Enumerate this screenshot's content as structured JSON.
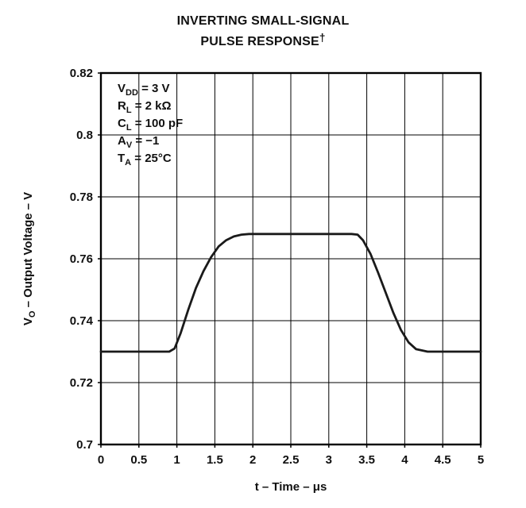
{
  "title": {
    "line1": "INVERTING SMALL-SIGNAL",
    "line2": "PULSE RESPONSE",
    "dagger": "†"
  },
  "chart_data": {
    "type": "line",
    "title": "INVERTING SMALL-SIGNAL PULSE RESPONSE†",
    "title_lines": [
      "INVERTING SMALL-SIGNAL",
      "PULSE RESPONSE"
    ],
    "title_dagger": "†",
    "xlabel": "t – Time – μs",
    "ylabel": {
      "pre": "V",
      "sub": "O",
      "post": " – Output Voltage – V"
    },
    "xlim": [
      0,
      5
    ],
    "ylim": [
      0.7,
      0.82
    ],
    "xticks": [
      0,
      0.5,
      1,
      1.5,
      2,
      2.5,
      3,
      3.5,
      4,
      4.5,
      5
    ],
    "yticks": [
      0.7,
      0.72,
      0.74,
      0.76,
      0.78,
      0.8,
      0.82
    ],
    "grid": true,
    "legend": "none",
    "line_color": "#1a1a1a",
    "annotations": [
      {
        "pre": "V",
        "sub": "DD",
        "post": " = 3 V"
      },
      {
        "pre": "R",
        "sub": "L",
        "post": " = 2 kΩ"
      },
      {
        "pre": "C",
        "sub": "L",
        "post": " = 100  pF"
      },
      {
        "pre": "A",
        "sub": "V",
        "post": " = −1"
      },
      {
        "pre": "T",
        "sub": "A",
        "post": " = 25°C"
      }
    ],
    "series": [
      {
        "name": "output-voltage",
        "points": [
          [
            0,
            0.73
          ],
          [
            0.9,
            0.73
          ],
          [
            0.97,
            0.731
          ],
          [
            1.05,
            0.736
          ],
          [
            1.15,
            0.7435
          ],
          [
            1.25,
            0.7505
          ],
          [
            1.35,
            0.756
          ],
          [
            1.45,
            0.7605
          ],
          [
            1.55,
            0.764
          ],
          [
            1.65,
            0.766
          ],
          [
            1.75,
            0.7672
          ],
          [
            1.85,
            0.7678
          ],
          [
            1.95,
            0.768
          ],
          [
            3.3,
            0.768
          ],
          [
            3.38,
            0.7678
          ],
          [
            3.45,
            0.766
          ],
          [
            3.55,
            0.7615
          ],
          [
            3.65,
            0.7555
          ],
          [
            3.75,
            0.749
          ],
          [
            3.85,
            0.7425
          ],
          [
            3.95,
            0.737
          ],
          [
            4.05,
            0.733
          ],
          [
            4.15,
            0.7308
          ],
          [
            4.3,
            0.73
          ],
          [
            5,
            0.73
          ]
        ]
      }
    ]
  }
}
